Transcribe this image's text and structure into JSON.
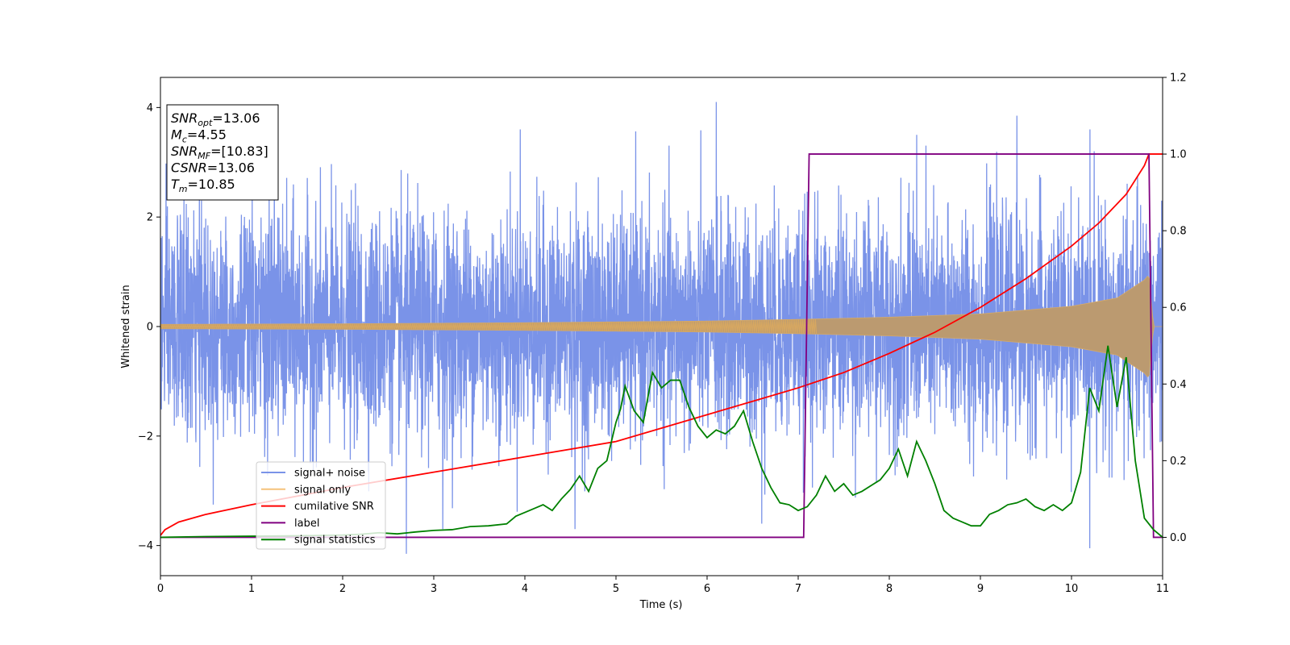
{
  "chart_data": {
    "type": "line",
    "title": "",
    "xlabel": "Time (s)",
    "ylabel": "Whitened strain",
    "y2label": "",
    "xlim": [
      0,
      11
    ],
    "ylim": [
      -4.55,
      4.55
    ],
    "y2lim": [
      -0.1,
      1.2
    ],
    "xticks": [
      "0",
      "1",
      "2",
      "3",
      "4",
      "5",
      "6",
      "7",
      "8",
      "9",
      "10",
      "11"
    ],
    "xtick_values": [
      0,
      1,
      2,
      3,
      4,
      5,
      6,
      7,
      8,
      9,
      10,
      11
    ],
    "yticks": [
      "−4",
      "−2",
      "0",
      "2",
      "4"
    ],
    "ytick_values": [
      -4,
      -2,
      0,
      2,
      4
    ],
    "y2ticks": [
      "0.0",
      "0.2",
      "0.4",
      "0.6",
      "0.8",
      "1.0",
      "1.2"
    ],
    "y2tick_values": [
      0.0,
      0.2,
      0.4,
      0.6,
      0.8,
      1.0,
      1.2
    ],
    "grid": false,
    "legend_placement": "lower-left",
    "annotation": {
      "lines": [
        {
          "sym": "SNR",
          "sub": "opt",
          "val": "=13.06"
        },
        {
          "sym": "M",
          "sub": "c",
          "val": "=4.55"
        },
        {
          "sym": "SNR",
          "sub": "MF",
          "val": "=[10.83]"
        },
        {
          "sym": "CSNR",
          "sub": "",
          "val": "=13.06"
        },
        {
          "sym": "T",
          "sub": "m",
          "val": "=10.85"
        }
      ]
    },
    "series": [
      {
        "name": "signal+ noise",
        "axis": "left",
        "color": "#7a93e8",
        "noise_std": 1.0,
        "peak_samples": [
          [
            0.45,
            2.3
          ],
          [
            1.25,
            2.9
          ],
          [
            2.7,
            -4.15
          ],
          [
            3.1,
            -3.7
          ],
          [
            3.95,
            3.6
          ],
          [
            4.55,
            -3.7
          ],
          [
            6.1,
            4.1
          ],
          [
            6.6,
            -3.6
          ],
          [
            8.3,
            3.5
          ],
          [
            9.4,
            3.85
          ],
          [
            10.2,
            -4.05
          ],
          [
            10.25,
            3.2
          ]
        ]
      },
      {
        "name": "signal only",
        "axis": "left",
        "color": "#f5c27a",
        "envelope": [
          [
            0,
            0.04
          ],
          [
            2,
            0.05
          ],
          [
            4,
            0.07
          ],
          [
            6,
            0.1
          ],
          [
            7,
            0.13
          ],
          [
            8,
            0.17
          ],
          [
            9,
            0.23
          ],
          [
            10,
            0.37
          ],
          [
            10.5,
            0.52
          ],
          [
            10.8,
            0.85
          ],
          [
            10.85,
            0.95
          ],
          [
            10.9,
            0.0
          ]
        ]
      },
      {
        "name": "cumilative SNR",
        "axis": "right",
        "color": "#ff0000",
        "x": [
          0,
          0.05,
          0.2,
          0.5,
          1,
          2,
          3,
          4,
          5,
          6,
          6.5,
          7,
          7.5,
          8,
          8.5,
          9,
          9.5,
          10,
          10.3,
          10.6,
          10.8,
          10.85,
          11
        ],
        "values": [
          0.005,
          0.02,
          0.04,
          0.06,
          0.085,
          0.13,
          0.17,
          0.21,
          0.25,
          0.32,
          0.355,
          0.39,
          0.43,
          0.48,
          0.535,
          0.6,
          0.675,
          0.76,
          0.82,
          0.895,
          0.97,
          1.0,
          1.0
        ]
      },
      {
        "name": "label",
        "axis": "right",
        "color": "#800080",
        "x": [
          0,
          7.06,
          7.12,
          10.85,
          10.9,
          11
        ],
        "values": [
          0,
          0,
          1,
          1,
          0,
          0
        ]
      },
      {
        "name": "signal statistics",
        "axis": "right",
        "color": "#008000",
        "x": [
          0,
          0.5,
          1,
          1.5,
          2,
          2.2,
          2.4,
          2.6,
          2.8,
          3,
          3.2,
          3.4,
          3.6,
          3.8,
          3.9,
          4,
          4.1,
          4.2,
          4.3,
          4.4,
          4.5,
          4.6,
          4.7,
          4.8,
          4.9,
          5,
          5.05,
          5.1,
          5.2,
          5.3,
          5.4,
          5.5,
          5.6,
          5.7,
          5.8,
          5.9,
          6,
          6.1,
          6.2,
          6.3,
          6.4,
          6.5,
          6.6,
          6.7,
          6.8,
          6.9,
          7,
          7.1,
          7.2,
          7.3,
          7.4,
          7.5,
          7.6,
          7.7,
          7.8,
          7.9,
          8,
          8.1,
          8.2,
          8.3,
          8.4,
          8.5,
          8.6,
          8.7,
          8.8,
          8.9,
          9,
          9.1,
          9.2,
          9.3,
          9.4,
          9.5,
          9.6,
          9.7,
          9.8,
          9.9,
          10,
          10.1,
          10.2,
          10.3,
          10.4,
          10.5,
          10.6,
          10.7,
          10.8,
          10.9,
          11
        ],
        "values": [
          0.0,
          0.002,
          0.003,
          0.004,
          0.006,
          0.008,
          0.012,
          0.009,
          0.014,
          0.018,
          0.02,
          0.028,
          0.03,
          0.035,
          0.055,
          0.065,
          0.075,
          0.085,
          0.07,
          0.1,
          0.125,
          0.16,
          0.12,
          0.18,
          0.2,
          0.3,
          0.335,
          0.395,
          0.33,
          0.3,
          0.43,
          0.39,
          0.41,
          0.41,
          0.34,
          0.29,
          0.26,
          0.28,
          0.27,
          0.29,
          0.33,
          0.25,
          0.18,
          0.13,
          0.09,
          0.085,
          0.07,
          0.08,
          0.11,
          0.16,
          0.12,
          0.14,
          0.11,
          0.12,
          0.135,
          0.15,
          0.18,
          0.23,
          0.16,
          0.25,
          0.2,
          0.14,
          0.07,
          0.05,
          0.04,
          0.03,
          0.03,
          0.06,
          0.07,
          0.085,
          0.09,
          0.1,
          0.08,
          0.07,
          0.085,
          0.07,
          0.09,
          0.17,
          0.39,
          0.33,
          0.5,
          0.34,
          0.47,
          0.2,
          0.05,
          0.02,
          0.0
        ]
      }
    ]
  }
}
